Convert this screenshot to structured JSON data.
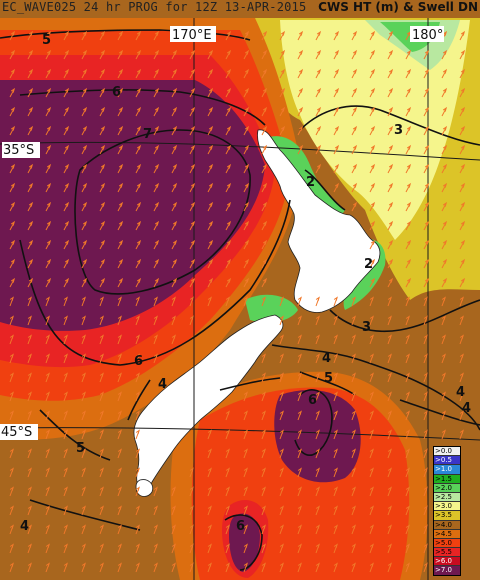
{
  "header": {
    "left": "EC_WAVE025 24 hr PROG for 12Z 13-APR-2015",
    "right": "CWS HT (m) & Swell DN"
  },
  "grid_labels": {
    "lon_170": "170°E",
    "lon_180": "180°",
    "lat_35": "35°S",
    "lat_45": "45°S"
  },
  "contour_labels": [
    "5",
    "6",
    "7",
    "3",
    "2",
    "2",
    "3",
    "4",
    "5",
    "6",
    "6",
    "4",
    "5",
    "4",
    "4",
    "6",
    "4"
  ],
  "legend": [
    {
      "label": ">0.0",
      "color": "#f0f0f0"
    },
    {
      "label": ">0.5",
      "color": "#3a35c8"
    },
    {
      "label": ">1.0",
      "color": "#2a88d8"
    },
    {
      "label": ">1.5",
      "color": "#20b020"
    },
    {
      "label": ">2.0",
      "color": "#5ad25a"
    },
    {
      "label": ">2.5",
      "color": "#b8e8a0"
    },
    {
      "label": ">3.0",
      "color": "#f5f58c"
    },
    {
      "label": ">3.5",
      "color": "#dcc428"
    },
    {
      "label": ">4.0",
      "color": "#a8661e"
    },
    {
      "label": ">4.5",
      "color": "#dc6e10"
    },
    {
      "label": ">5.0",
      "color": "#f04010"
    },
    {
      "label": ">5.5",
      "color": "#e82424"
    },
    {
      "label": ">6.0",
      "color": "#c80c20"
    },
    {
      "label": ">7.0",
      "color": "#6e1850"
    }
  ],
  "colors": {
    "land": "#ffffff",
    "arrows": "#f0782a",
    "grid": "#1a1a1a",
    "contours": "#111111"
  }
}
